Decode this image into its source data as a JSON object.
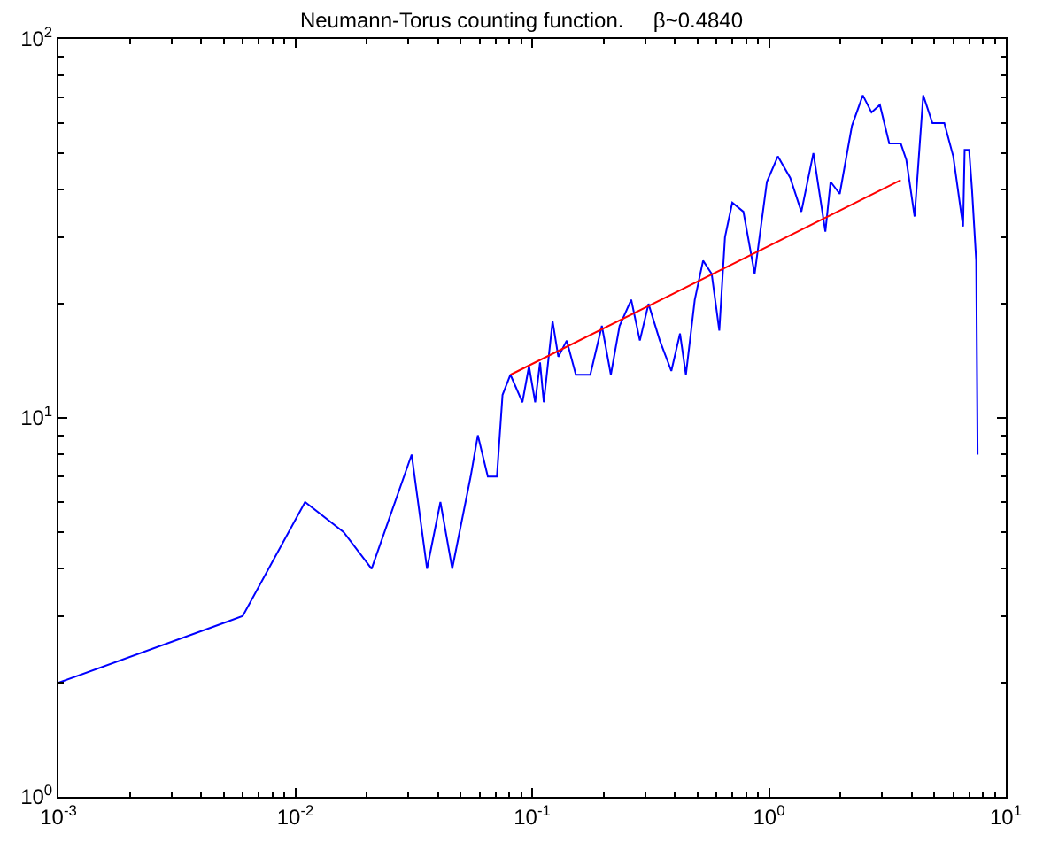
{
  "chart_data": {
    "type": "line",
    "title": "Neumann-Torus counting function.     β~0.4840",
    "log": "xy",
    "marker": "none",
    "line_style": "solid",
    "xlim": [
      0.001,
      10
    ],
    "ylim": [
      1,
      100
    ],
    "xticks": [
      {
        "value": 0.001,
        "label": "10$^{-3}$"
      },
      {
        "value": 0.01,
        "label": "10$^{-2}$"
      },
      {
        "value": 0.1,
        "label": "10$^{-1}$"
      },
      {
        "value": 1,
        "label": "10$^{0}$"
      },
      {
        "value": 10,
        "label": "10$^{1}$"
      }
    ],
    "yticks": [
      {
        "value": 1,
        "label": "10$^{0}$"
      },
      {
        "value": 10,
        "label": "10$^{1}$"
      },
      {
        "value": 100,
        "label": "10$^{2}$"
      }
    ],
    "series": [
      {
        "color": "#0000ff",
        "x": [
          0.001,
          0.006,
          0.011,
          0.016,
          0.021,
          0.031,
          0.036,
          0.041,
          0.046,
          0.055,
          0.059,
          0.065,
          0.071,
          0.075,
          0.081,
          0.091,
          0.097,
          0.103,
          0.108,
          0.112,
          0.122,
          0.129,
          0.14,
          0.153,
          0.176,
          0.197,
          0.215,
          0.234,
          0.262,
          0.285,
          0.31,
          0.346,
          0.387,
          0.421,
          0.446,
          0.486,
          0.527,
          0.573,
          0.617,
          0.652,
          0.7,
          0.78,
          0.87,
          0.98,
          1.09,
          1.23,
          1.37,
          1.54,
          1.73,
          1.82,
          1.99,
          2.24,
          2.49,
          2.71,
          2.94,
          3.22,
          3.6,
          3.8,
          4.12,
          4.48,
          4.9,
          5.5,
          6.0,
          6.6,
          6.7,
          7.0,
          7.2,
          7.5,
          7.6
        ],
        "values": [
          2,
          3,
          6,
          5,
          4,
          8,
          4,
          6,
          4,
          7,
          9,
          7,
          7,
          11.5,
          13,
          11,
          13.7,
          11,
          14,
          11,
          18,
          14.5,
          16,
          13,
          13,
          17.5,
          13,
          17.5,
          20.5,
          16,
          20,
          16,
          13.3,
          16.7,
          13,
          20.5,
          26,
          24,
          17,
          30,
          37,
          35,
          24,
          42,
          49,
          43,
          35,
          50,
          31,
          42,
          39,
          59,
          71,
          64,
          67,
          53,
          53,
          48,
          34,
          71,
          60,
          60,
          49,
          32,
          51,
          51,
          40,
          26,
          8
        ]
      },
      {
        "color": "#ff0000",
        "x": [
          0.081,
          3.6
        ],
        "values": [
          13,
          42.4
        ]
      }
    ]
  }
}
